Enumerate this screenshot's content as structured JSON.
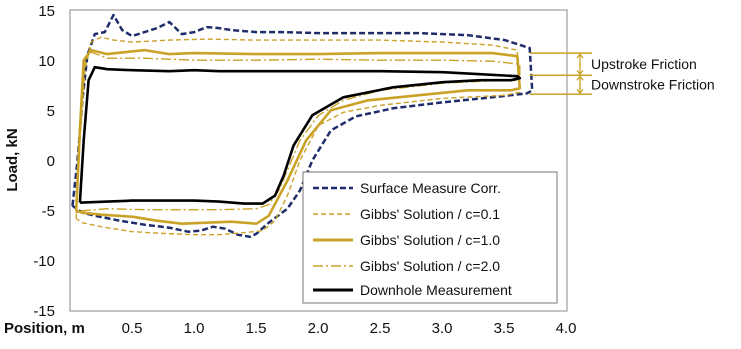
{
  "chart_data": {
    "type": "line",
    "xlabel": "Position, m",
    "ylabel": "Load, kN",
    "xlim": [
      0.0,
      4.0
    ],
    "ylim": [
      -15,
      15
    ],
    "xticks": [
      "0.5",
      "1.0",
      "1.5",
      "2.0",
      "2.5",
      "3.0",
      "3.5",
      "4.0"
    ],
    "yticks": [
      "15",
      "10",
      "5",
      "0",
      "-5",
      "-10",
      "-15"
    ],
    "grid": false,
    "legend_position": "bottom-right",
    "colors": {
      "navy": "#1f2d6b",
      "gold": "#c9a227",
      "black": "#000000",
      "annotation": "#c9a227"
    },
    "series": [
      {
        "name": "Surface Measure Corr.",
        "style": "dashed",
        "color": "navy",
        "points": [
          [
            0.02,
            -4.5
          ],
          [
            0.06,
            0.0
          ],
          [
            0.1,
            6.0
          ],
          [
            0.14,
            10.5
          ],
          [
            0.2,
            12.6
          ],
          [
            0.28,
            12.8
          ],
          [
            0.35,
            14.5
          ],
          [
            0.42,
            13.0
          ],
          [
            0.5,
            12.4
          ],
          [
            0.6,
            12.8
          ],
          [
            0.7,
            13.2
          ],
          [
            0.8,
            13.8
          ],
          [
            0.9,
            12.6
          ],
          [
            1.0,
            12.8
          ],
          [
            1.1,
            13.3
          ],
          [
            1.2,
            13.2
          ],
          [
            1.3,
            13.0
          ],
          [
            1.4,
            12.9
          ],
          [
            1.5,
            12.8
          ],
          [
            1.7,
            12.8
          ],
          [
            2.0,
            12.7
          ],
          [
            2.4,
            12.7
          ],
          [
            2.8,
            12.7
          ],
          [
            3.2,
            12.5
          ],
          [
            3.5,
            12.0
          ],
          [
            3.6,
            11.6
          ],
          [
            3.7,
            11.2
          ],
          [
            3.72,
            7.0
          ],
          [
            3.68,
            6.7
          ],
          [
            3.4,
            6.3
          ],
          [
            3.0,
            5.8
          ],
          [
            2.6,
            5.2
          ],
          [
            2.3,
            4.4
          ],
          [
            2.1,
            3.0
          ],
          [
            1.95,
            0.0
          ],
          [
            1.85,
            -3.0
          ],
          [
            1.75,
            -4.8
          ],
          [
            1.6,
            -6.2
          ],
          [
            1.5,
            -7.3
          ],
          [
            1.45,
            -7.6
          ],
          [
            1.35,
            -7.4
          ],
          [
            1.25,
            -6.8
          ],
          [
            1.15,
            -6.6
          ],
          [
            1.05,
            -7.0
          ],
          [
            0.95,
            -7.1
          ],
          [
            0.8,
            -6.7
          ],
          [
            0.6,
            -6.4
          ],
          [
            0.4,
            -6.0
          ],
          [
            0.2,
            -5.5
          ],
          [
            0.1,
            -5.2
          ],
          [
            0.02,
            -4.5
          ]
        ]
      },
      {
        "name": "Gibbs' Solution / c=0.1",
        "style": "dashed-short",
        "color": "gold",
        "points": [
          [
            0.05,
            -5.8
          ],
          [
            0.08,
            2.0
          ],
          [
            0.12,
            9.0
          ],
          [
            0.17,
            11.8
          ],
          [
            0.25,
            12.3
          ],
          [
            0.35,
            12.0
          ],
          [
            0.5,
            11.8
          ],
          [
            0.8,
            12.0
          ],
          [
            1.1,
            12.1
          ],
          [
            1.5,
            12.0
          ],
          [
            2.0,
            12.0
          ],
          [
            2.5,
            12.0
          ],
          [
            3.0,
            11.8
          ],
          [
            3.4,
            11.5
          ],
          [
            3.6,
            11.0
          ],
          [
            3.62,
            6.8
          ],
          [
            3.5,
            6.5
          ],
          [
            3.0,
            6.2
          ],
          [
            2.5,
            5.5
          ],
          [
            2.2,
            4.8
          ],
          [
            2.0,
            3.5
          ],
          [
            1.85,
            0.0
          ],
          [
            1.75,
            -3.5
          ],
          [
            1.65,
            -6.0
          ],
          [
            1.55,
            -7.0
          ],
          [
            1.4,
            -7.2
          ],
          [
            1.2,
            -7.4
          ],
          [
            1.0,
            -7.4
          ],
          [
            0.8,
            -7.3
          ],
          [
            0.5,
            -7.1
          ],
          [
            0.25,
            -6.6
          ],
          [
            0.1,
            -6.2
          ],
          [
            0.05,
            -5.8
          ]
        ]
      },
      {
        "name": "Gibbs' Solution / c=1.0",
        "style": "solid",
        "color": "gold",
        "points": [
          [
            0.05,
            -5.0
          ],
          [
            0.08,
            3.0
          ],
          [
            0.11,
            10.0
          ],
          [
            0.17,
            11.0
          ],
          [
            0.3,
            10.6
          ],
          [
            0.45,
            10.8
          ],
          [
            0.6,
            11.0
          ],
          [
            0.8,
            10.6
          ],
          [
            1.0,
            10.7
          ],
          [
            1.5,
            10.6
          ],
          [
            2.0,
            10.6
          ],
          [
            2.5,
            10.7
          ],
          [
            3.0,
            10.7
          ],
          [
            3.4,
            10.7
          ],
          [
            3.6,
            10.4
          ],
          [
            3.62,
            7.2
          ],
          [
            3.55,
            7.0
          ],
          [
            3.2,
            7.0
          ],
          [
            2.8,
            6.5
          ],
          [
            2.4,
            6.0
          ],
          [
            2.1,
            5.0
          ],
          [
            1.9,
            2.0
          ],
          [
            1.75,
            -2.0
          ],
          [
            1.6,
            -5.5
          ],
          [
            1.5,
            -6.3
          ],
          [
            1.3,
            -6.1
          ],
          [
            1.1,
            -6.2
          ],
          [
            0.9,
            -6.3
          ],
          [
            0.7,
            -6.0
          ],
          [
            0.5,
            -5.6
          ],
          [
            0.25,
            -5.4
          ],
          [
            0.1,
            -5.2
          ],
          [
            0.05,
            -5.0
          ]
        ]
      },
      {
        "name": "Gibbs' Solution / c=2.0",
        "style": "dashdot",
        "color": "gold",
        "points": [
          [
            0.05,
            -5.2
          ],
          [
            0.08,
            3.5
          ],
          [
            0.12,
            10.0
          ],
          [
            0.17,
            10.8
          ],
          [
            0.3,
            10.2
          ],
          [
            0.6,
            10.2
          ],
          [
            1.0,
            10.0
          ],
          [
            1.5,
            10.0
          ],
          [
            2.0,
            10.1
          ],
          [
            2.5,
            10.0
          ],
          [
            3.0,
            10.0
          ],
          [
            3.4,
            9.9
          ],
          [
            3.62,
            9.6
          ],
          [
            3.62,
            8.0
          ],
          [
            3.5,
            8.0
          ],
          [
            3.0,
            7.7
          ],
          [
            2.5,
            7.0
          ],
          [
            2.2,
            6.0
          ],
          [
            2.0,
            4.5
          ],
          [
            1.85,
            2.0
          ],
          [
            1.75,
            -1.0
          ],
          [
            1.68,
            -3.0
          ],
          [
            1.6,
            -4.4
          ],
          [
            1.5,
            -4.8
          ],
          [
            1.2,
            -4.9
          ],
          [
            0.9,
            -4.9
          ],
          [
            0.6,
            -4.9
          ],
          [
            0.3,
            -4.8
          ],
          [
            0.1,
            -5.0
          ],
          [
            0.05,
            -5.2
          ]
        ]
      },
      {
        "name": "Downhole Measurement",
        "style": "solid-thick",
        "color": "black",
        "points": [
          [
            0.08,
            -4.2
          ],
          [
            0.11,
            2.0
          ],
          [
            0.15,
            8.0
          ],
          [
            0.2,
            9.3
          ],
          [
            0.3,
            9.1
          ],
          [
            0.5,
            9.0
          ],
          [
            0.8,
            8.9
          ],
          [
            1.0,
            9.0
          ],
          [
            1.2,
            8.9
          ],
          [
            1.5,
            8.9
          ],
          [
            2.0,
            8.9
          ],
          [
            2.5,
            8.9
          ],
          [
            3.0,
            8.8
          ],
          [
            3.3,
            8.6
          ],
          [
            3.6,
            8.4
          ],
          [
            3.62,
            8.2
          ],
          [
            3.55,
            8.0
          ],
          [
            3.3,
            8.0
          ],
          [
            3.0,
            7.8
          ],
          [
            2.6,
            7.3
          ],
          [
            2.2,
            6.3
          ],
          [
            1.95,
            4.5
          ],
          [
            1.8,
            1.5
          ],
          [
            1.72,
            -1.5
          ],
          [
            1.65,
            -3.5
          ],
          [
            1.55,
            -4.3
          ],
          [
            1.4,
            -4.3
          ],
          [
            1.2,
            -4.1
          ],
          [
            1.0,
            -4.0
          ],
          [
            0.7,
            -4.0
          ],
          [
            0.5,
            -4.0
          ],
          [
            0.3,
            -4.1
          ],
          [
            0.1,
            -4.2
          ],
          [
            0.08,
            -4.2
          ]
        ]
      }
    ],
    "annotations": [
      {
        "label": "Upstroke Friction",
        "from_y": 10.7,
        "to_y": 8.5
      },
      {
        "label": "Downstroke Friction",
        "from_y": 8.5,
        "to_y": 6.6
      }
    ]
  }
}
